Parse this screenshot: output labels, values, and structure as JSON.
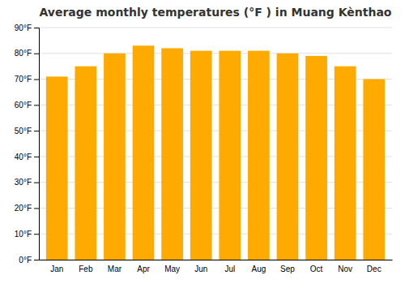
{
  "chart_data": {
    "type": "bar",
    "title": "Average monthly temperatures (°F ) in Muang Kènthao",
    "categories": [
      "Jan",
      "Feb",
      "Mar",
      "Apr",
      "May",
      "Jun",
      "Jul",
      "Aug",
      "Sep",
      "Oct",
      "Nov",
      "Dec"
    ],
    "values": [
      71,
      75,
      80,
      83,
      82,
      81,
      81,
      81,
      80,
      79,
      75,
      70
    ],
    "color": "#FFAA00",
    "ylim": [
      0,
      90
    ],
    "yticks": [
      {
        "value": 0,
        "label": "0°F"
      },
      {
        "value": 10,
        "label": "10°F"
      },
      {
        "value": 20,
        "label": "20°F"
      },
      {
        "value": 30,
        "label": "30°F"
      },
      {
        "value": 40,
        "label": "40°F"
      },
      {
        "value": 50,
        "label": "50°F"
      },
      {
        "value": 60,
        "label": "60°F"
      },
      {
        "value": 70,
        "label": "70°F"
      },
      {
        "value": 80,
        "label": "80°F"
      },
      {
        "value": 90,
        "label": "90°F"
      }
    ],
    "grid": true
  }
}
